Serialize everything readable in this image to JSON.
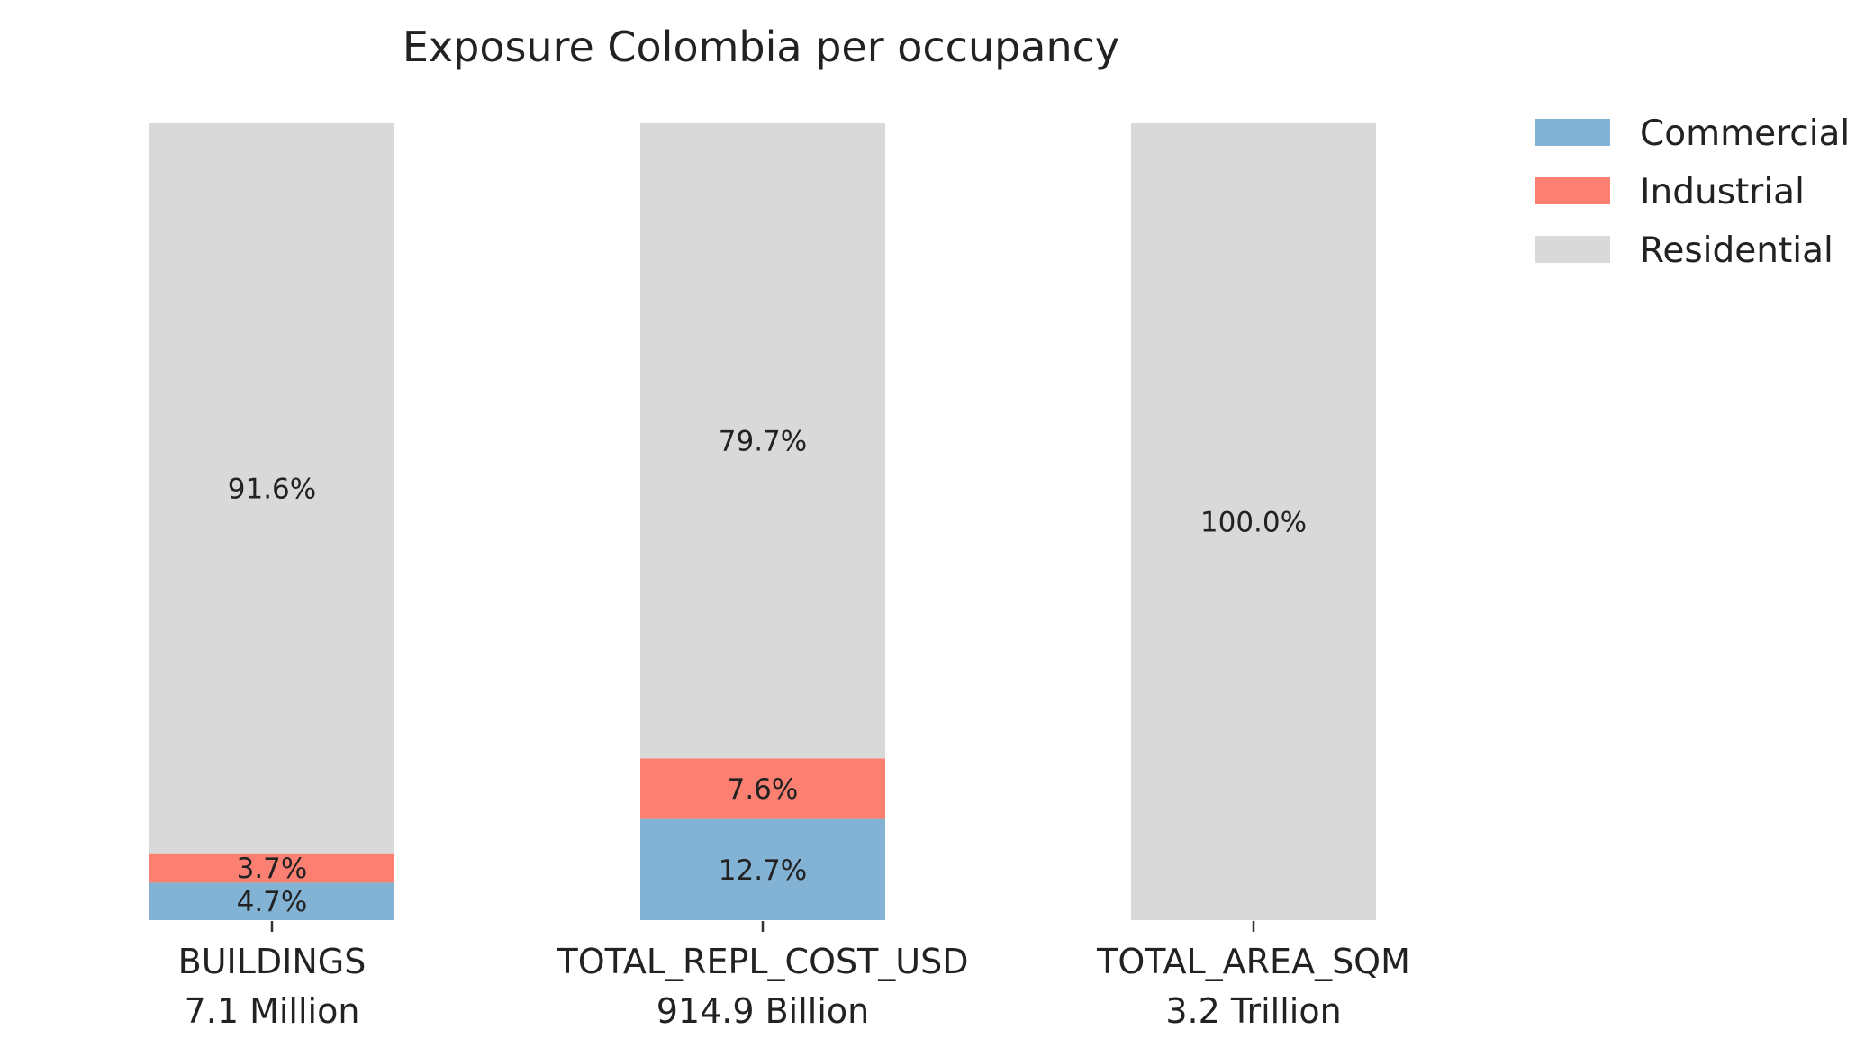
{
  "chart_data": {
    "type": "bar",
    "stacked": true,
    "normalized": true,
    "title": "Exposure Colombia per occupancy",
    "xlabel": "",
    "ylabel": "",
    "categories": [
      "BUILDINGS",
      "TOTAL_REPL_COST_USD",
      "TOTAL_AREA_SQM"
    ],
    "category_totals": [
      "7.1 Million",
      "914.9 Billion",
      "3.2 Trillion"
    ],
    "ylim": [
      0,
      100
    ],
    "grid": false,
    "legend": "top-right",
    "series": [
      {
        "name": "Commercial",
        "color": "#82b2d4",
        "values": [
          4.7,
          12.7,
          0
        ],
        "labels": [
          "4.7%",
          "12.7%",
          ""
        ]
      },
      {
        "name": "Industrial",
        "color": "#fb8072",
        "values": [
          3.7,
          7.6,
          0
        ],
        "labels": [
          "3.7%",
          "7.6%",
          ""
        ]
      },
      {
        "name": "Residential",
        "color": "#d9d9d9",
        "values": [
          91.6,
          79.7,
          100.0
        ],
        "labels": [
          "91.6%",
          "79.7%",
          "100.0%"
        ]
      }
    ]
  }
}
